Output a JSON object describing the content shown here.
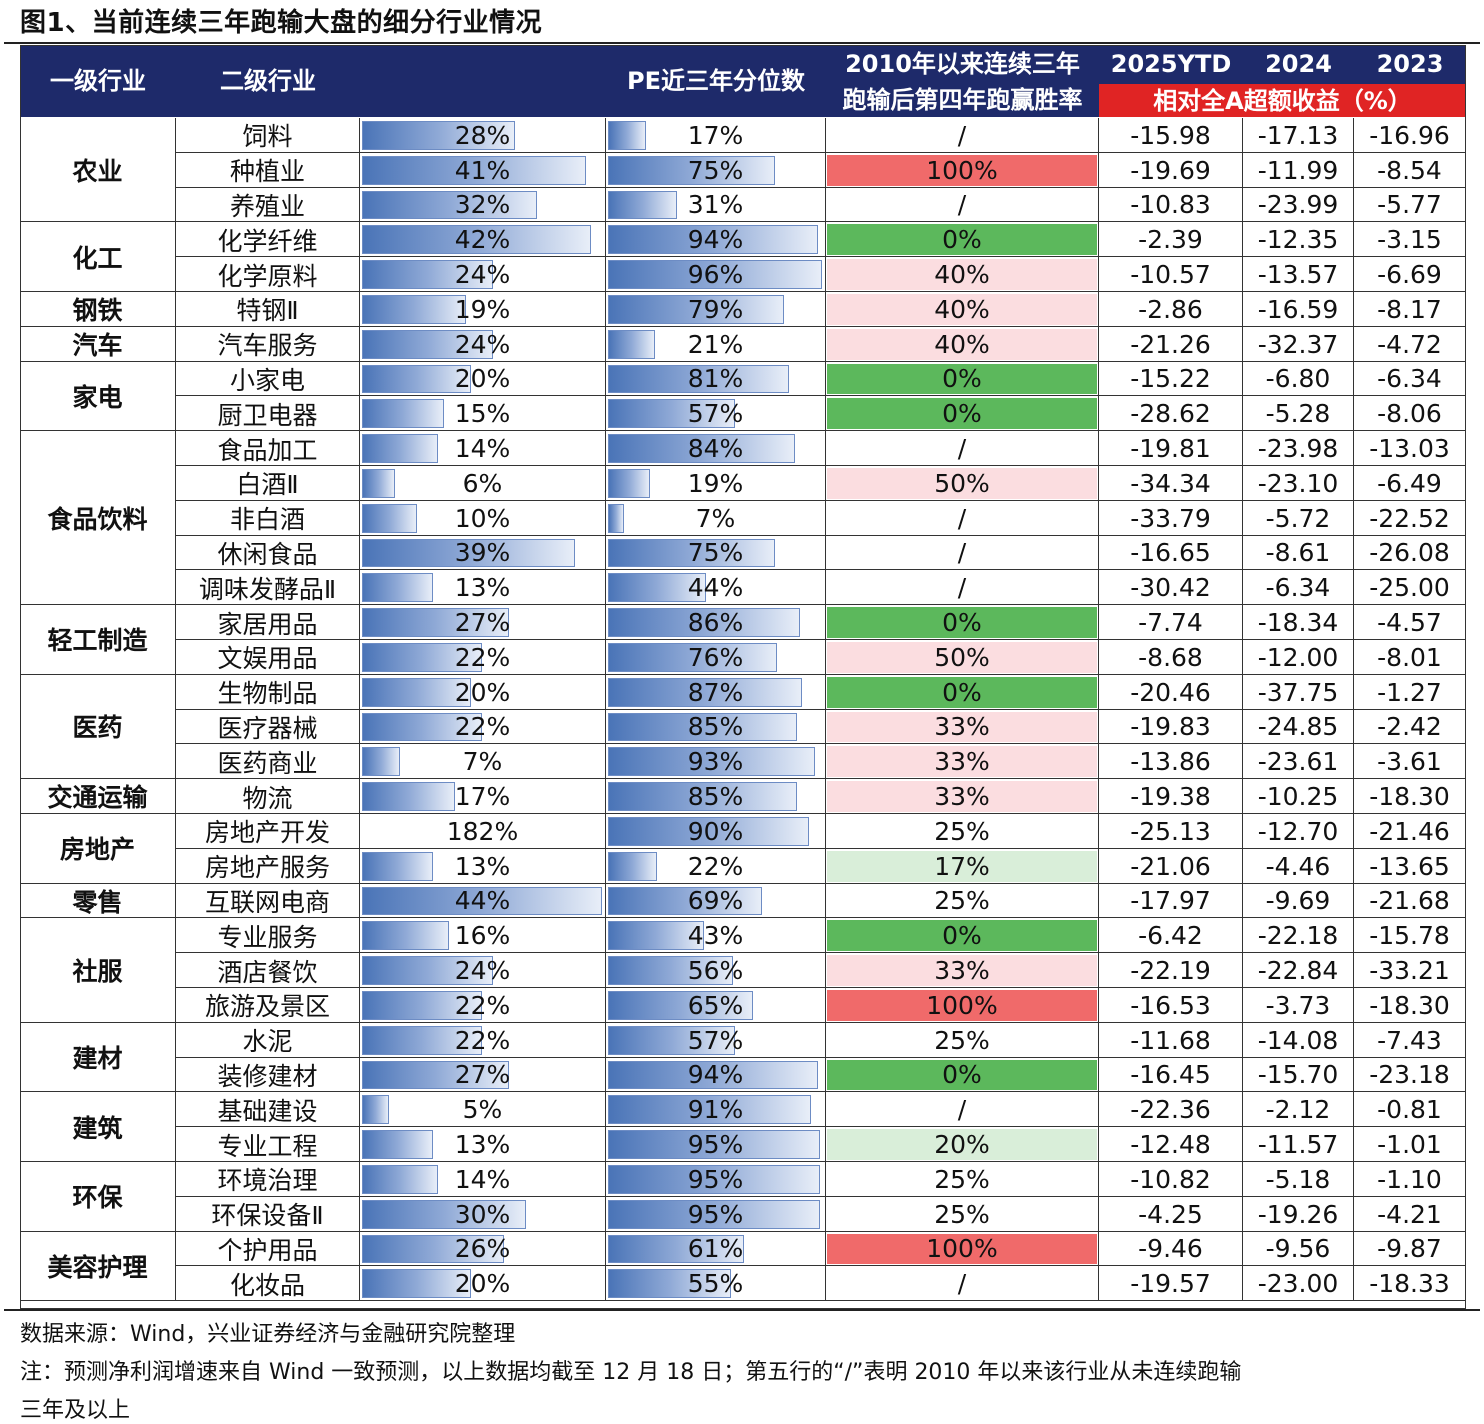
{
  "title": "图1、当前连续三年跑输大盘的细分行业情况",
  "header": {
    "l1": "一级行业",
    "l2": "二级行业",
    "pe": "PE近三年分位数",
    "win_line1": "2010年以来连续三年",
    "win_line2": "跑输后第四年跑赢胜率",
    "y2025": "2025YTD",
    "y2024": "2024",
    "y2023": "2023",
    "excess": "相对全A超额收益（%）"
  },
  "colors": {
    "header_bg": "#1e2a6a",
    "header_red": "#e02424",
    "win_100": "#f06a6a",
    "win_0": "#5cb85c",
    "win_mid_pink": "#fbdde0",
    "win_20": "#d9eed9",
    "win_25": "#ffffff"
  },
  "groups": [
    {
      "l1": "农业",
      "rows": [
        {
          "l2": "饲料",
          "c": "28%",
          "pe": "17%",
          "win": "/",
          "y2025": "-15.98",
          "y2024": "-17.13",
          "y2023": "-16.96"
        },
        {
          "l2": "种植业",
          "c": "41%",
          "pe": "75%",
          "win": "100%",
          "y2025": "-19.69",
          "y2024": "-11.99",
          "y2023": "-8.54"
        },
        {
          "l2": "养殖业",
          "c": "32%",
          "pe": "31%",
          "win": "/",
          "y2025": "-10.83",
          "y2024": "-23.99",
          "y2023": "-5.77"
        }
      ]
    },
    {
      "l1": "化工",
      "rows": [
        {
          "l2": "化学纤维",
          "c": "42%",
          "pe": "94%",
          "win": "0%",
          "y2025": "-2.39",
          "y2024": "-12.35",
          "y2023": "-3.15"
        },
        {
          "l2": "化学原料",
          "c": "24%",
          "pe": "96%",
          "win": "40%",
          "y2025": "-10.57",
          "y2024": "-13.57",
          "y2023": "-6.69"
        }
      ]
    },
    {
      "l1": "钢铁",
      "rows": [
        {
          "l2": "特钢Ⅱ",
          "c": "19%",
          "pe": "79%",
          "win": "40%",
          "y2025": "-2.86",
          "y2024": "-16.59",
          "y2023": "-8.17"
        }
      ]
    },
    {
      "l1": "汽车",
      "rows": [
        {
          "l2": "汽车服务",
          "c": "24%",
          "pe": "21%",
          "win": "40%",
          "y2025": "-21.26",
          "y2024": "-32.37",
          "y2023": "-4.72"
        }
      ]
    },
    {
      "l1": "家电",
      "rows": [
        {
          "l2": "小家电",
          "c": "20%",
          "pe": "81%",
          "win": "0%",
          "y2025": "-15.22",
          "y2024": "-6.80",
          "y2023": "-6.34"
        },
        {
          "l2": "厨卫电器",
          "c": "15%",
          "pe": "57%",
          "win": "0%",
          "y2025": "-28.62",
          "y2024": "-5.28",
          "y2023": "-8.06"
        }
      ]
    },
    {
      "l1": "食品饮料",
      "rows": [
        {
          "l2": "食品加工",
          "c": "14%",
          "pe": "84%",
          "win": "/",
          "y2025": "-19.81",
          "y2024": "-23.98",
          "y2023": "-13.03"
        },
        {
          "l2": "白酒Ⅱ",
          "c": "6%",
          "pe": "19%",
          "win": "50%",
          "y2025": "-34.34",
          "y2024": "-23.10",
          "y2023": "-6.49"
        },
        {
          "l2": "非白酒",
          "c": "10%",
          "pe": "7%",
          "win": "/",
          "y2025": "-33.79",
          "y2024": "-5.72",
          "y2023": "-22.52"
        },
        {
          "l2": "休闲食品",
          "c": "39%",
          "pe": "75%",
          "win": "/",
          "y2025": "-16.65",
          "y2024": "-8.61",
          "y2023": "-26.08"
        },
        {
          "l2": "调味发酵品Ⅱ",
          "c": "13%",
          "pe": "44%",
          "win": "/",
          "y2025": "-30.42",
          "y2024": "-6.34",
          "y2023": "-25.00"
        }
      ]
    },
    {
      "l1": "轻工制造",
      "rows": [
        {
          "l2": "家居用品",
          "c": "27%",
          "pe": "86%",
          "win": "0%",
          "y2025": "-7.74",
          "y2024": "-18.34",
          "y2023": "-4.57"
        },
        {
          "l2": "文娱用品",
          "c": "22%",
          "pe": "76%",
          "win": "50%",
          "y2025": "-8.68",
          "y2024": "-12.00",
          "y2023": "-8.01"
        }
      ]
    },
    {
      "l1": "医药",
      "rows": [
        {
          "l2": "生物制品",
          "c": "20%",
          "pe": "87%",
          "win": "0%",
          "y2025": "-20.46",
          "y2024": "-37.75",
          "y2023": "-1.27"
        },
        {
          "l2": "医疗器械",
          "c": "22%",
          "pe": "85%",
          "win": "33%",
          "y2025": "-19.83",
          "y2024": "-24.85",
          "y2023": "-2.42"
        },
        {
          "l2": "医药商业",
          "c": "7%",
          "pe": "93%",
          "win": "33%",
          "y2025": "-13.86",
          "y2024": "-23.61",
          "y2023": "-3.61"
        }
      ]
    },
    {
      "l1": "交通运输",
      "rows": [
        {
          "l2": "物流",
          "c": "17%",
          "pe": "85%",
          "win": "33%",
          "y2025": "-19.38",
          "y2024": "-10.25",
          "y2023": "-18.30"
        }
      ]
    },
    {
      "l1": "房地产",
      "rows": [
        {
          "l2": "房地产开发",
          "c": "182%",
          "pe": "90%",
          "win": "25%",
          "y2025": "-25.13",
          "y2024": "-12.70",
          "y2023": "-21.46"
        },
        {
          "l2": "房地产服务",
          "c": "13%",
          "pe": "22%",
          "win": "17%",
          "y2025": "-21.06",
          "y2024": "-4.46",
          "y2023": "-13.65"
        }
      ]
    },
    {
      "l1": "零售",
      "rows": [
        {
          "l2": "互联网电商",
          "c": "44%",
          "pe": "69%",
          "win": "25%",
          "y2025": "-17.97",
          "y2024": "-9.69",
          "y2023": "-21.68"
        }
      ]
    },
    {
      "l1": "社服",
      "rows": [
        {
          "l2": "专业服务",
          "c": "16%",
          "pe": "43%",
          "win": "0%",
          "y2025": "-6.42",
          "y2024": "-22.18",
          "y2023": "-15.78"
        },
        {
          "l2": "酒店餐饮",
          "c": "24%",
          "pe": "56%",
          "win": "33%",
          "y2025": "-22.19",
          "y2024": "-22.84",
          "y2023": "-33.21"
        },
        {
          "l2": "旅游及景区",
          "c": "22%",
          "pe": "65%",
          "win": "100%",
          "y2025": "-16.53",
          "y2024": "-3.73",
          "y2023": "-18.30"
        }
      ]
    },
    {
      "l1": "建材",
      "rows": [
        {
          "l2": "水泥",
          "c": "22%",
          "pe": "57%",
          "win": "25%",
          "y2025": "-11.68",
          "y2024": "-14.08",
          "y2023": "-7.43"
        },
        {
          "l2": "装修建材",
          "c": "27%",
          "pe": "94%",
          "win": "0%",
          "y2025": "-16.45",
          "y2024": "-15.70",
          "y2023": "-23.18"
        }
      ]
    },
    {
      "l1": "建筑",
      "rows": [
        {
          "l2": "基础建设",
          "c": "5%",
          "pe": "91%",
          "win": "/",
          "y2025": "-22.36",
          "y2024": "-2.12",
          "y2023": "-0.81"
        },
        {
          "l2": "专业工程",
          "c": "13%",
          "pe": "95%",
          "win": "20%",
          "y2025": "-12.48",
          "y2024": "-11.57",
          "y2023": "-1.01"
        }
      ]
    },
    {
      "l1": "环保",
      "rows": [
        {
          "l2": "环境治理",
          "c": "14%",
          "pe": "95%",
          "win": "25%",
          "y2025": "-10.82",
          "y2024": "-5.18",
          "y2023": "-1.10"
        },
        {
          "l2": "环保设备Ⅱ",
          "c": "30%",
          "pe": "95%",
          "win": "25%",
          "y2025": "-4.25",
          "y2024": "-19.26",
          "y2023": "-4.21"
        }
      ]
    },
    {
      "l1": "美容护理",
      "rows": [
        {
          "l2": "个护用品",
          "c": "26%",
          "pe": "61%",
          "win": "100%",
          "y2025": "-9.46",
          "y2024": "-9.56",
          "y2023": "-9.87"
        },
        {
          "l2": "化妆品",
          "c": "20%",
          "pe": "55%",
          "win": "/",
          "y2025": "-19.57",
          "y2024": "-23.00",
          "y2023": "-18.33"
        }
      ]
    }
  ],
  "source": "数据来源：Wind，兴业证券经济与金融研究院整理",
  "note_line1": "注：预测净利润增速来自 Wind 一致预测，以上数据均截至 12 月 18 日；第五行的“/”表明 2010 年以来该行业从未连续跑输",
  "note_line2": "三年及以上"
}
